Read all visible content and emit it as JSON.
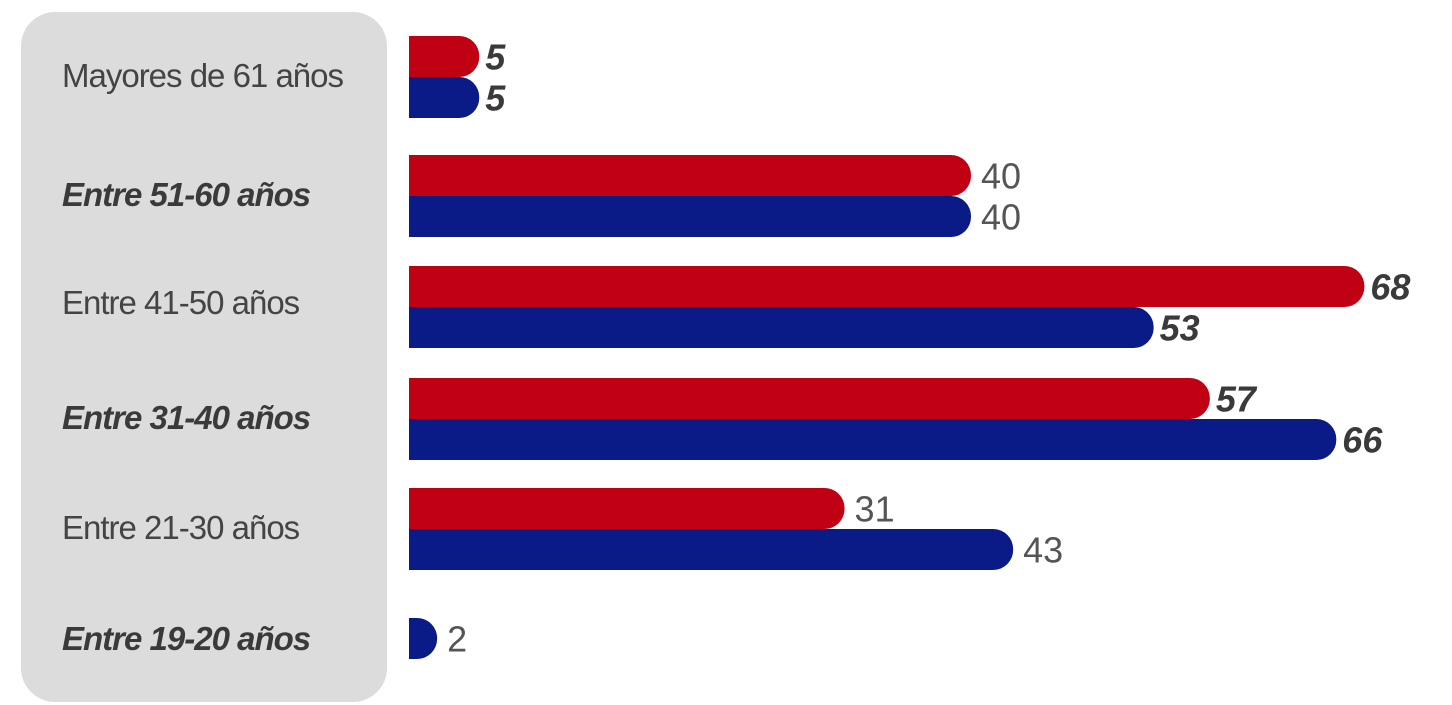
{
  "chart_data": {
    "type": "bar",
    "orientation": "horizontal",
    "categories": [
      "Mayores de 61 años",
      "Entre 51-60 años",
      "Entre 41-50 años",
      "Entre 31-40 años",
      "Entre 21-30 años",
      "Entre 19-20 años"
    ],
    "series": [
      {
        "color": "#c00013",
        "values": [
          5,
          40,
          68,
          57,
          31,
          null
        ]
      },
      {
        "color": "#0a1a86",
        "values": [
          5,
          40,
          53,
          66,
          43,
          2
        ]
      }
    ],
    "value_labels": [
      [
        "5",
        "40",
        "68",
        "57",
        "31",
        ""
      ],
      [
        "5",
        "40",
        "53",
        "66",
        "43",
        "2"
      ]
    ],
    "bold_value_labels": [
      [
        true,
        false,
        true,
        true,
        false,
        false
      ],
      [
        true,
        false,
        true,
        true,
        false,
        false
      ]
    ],
    "bold_categories": [
      false,
      true,
      false,
      true,
      false,
      true
    ],
    "title": "",
    "xlabel": "",
    "ylabel": "",
    "xlim": [
      0,
      70
    ],
    "grid": false,
    "legend": "none"
  }
}
